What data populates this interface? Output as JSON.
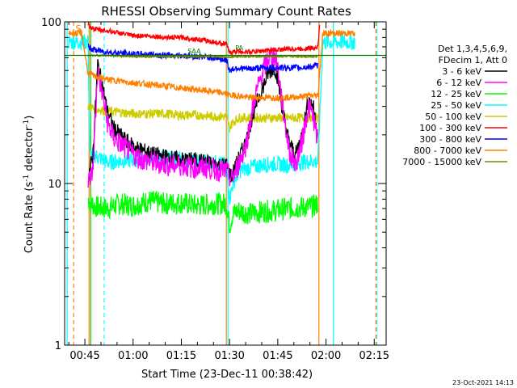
{
  "chart_data": {
    "type": "line",
    "title": "RHESSI Observing Summary Count Rates",
    "xlabel": "Start Time (23-Dec-11 00:38:42)",
    "ylabel": "Count Rate (s⁻¹ detector⁻¹)",
    "ylabel_parts": [
      "Count Rate (s",
      "-1",
      " detector",
      "-1",
      ")"
    ],
    "yscale": "log",
    "ylim": [
      1,
      100
    ],
    "xlim_minutes": [
      38.7,
      138.7
    ],
    "xticks": [
      {
        "m": 45,
        "label": "00:45"
      },
      {
        "m": 60,
        "label": "01:00"
      },
      {
        "m": 75,
        "label": "01:15"
      },
      {
        "m": 90,
        "label": "01:30"
      },
      {
        "m": 105,
        "label": "01:45"
      },
      {
        "m": 120,
        "label": "02:00"
      },
      {
        "m": 135,
        "label": "02:15"
      }
    ],
    "yticks": [
      {
        "v": 1,
        "label": "1"
      },
      {
        "v": 10,
        "label": "10"
      },
      {
        "v": 100,
        "label": "100"
      }
    ],
    "legend_header": [
      "Det 1,3,4,5,6,9,",
      "FDecim 1, Att 0"
    ],
    "legend_position": "right",
    "series": [
      {
        "name": "3 - 6 keV",
        "color": "#000000",
        "points": [
          [
            46,
            11
          ],
          [
            47.5,
            15
          ],
          [
            49,
            55
          ],
          [
            50.5,
            40
          ],
          [
            52,
            28
          ],
          [
            54,
            22
          ],
          [
            57,
            19
          ],
          [
            60,
            17
          ],
          [
            63,
            16
          ],
          [
            67,
            15
          ],
          [
            71,
            14.5
          ],
          [
            75,
            14
          ],
          [
            79,
            14
          ],
          [
            83,
            13.5
          ],
          [
            87,
            13
          ],
          [
            89,
            13
          ],
          [
            90.5,
            11
          ],
          [
            92,
            13
          ],
          [
            95,
            18
          ],
          [
            98,
            30
          ],
          [
            100.5,
            40
          ],
          [
            102,
            48
          ],
          [
            104,
            52
          ],
          [
            105,
            45
          ],
          [
            106.5,
            28
          ],
          [
            108.5,
            18
          ],
          [
            110.5,
            15
          ],
          [
            112.5,
            20
          ],
          [
            114.5,
            33
          ],
          [
            116,
            30
          ],
          [
            117.5,
            20
          ]
        ]
      },
      {
        "name": "6 - 12 keV",
        "color": "#ff00ff",
        "points": [
          [
            46,
            10
          ],
          [
            47.5,
            12
          ],
          [
            49,
            50
          ],
          [
            50.5,
            35
          ],
          [
            52,
            24
          ],
          [
            54,
            19
          ],
          [
            57,
            17
          ],
          [
            60,
            15
          ],
          [
            63,
            14
          ],
          [
            67,
            13.5
          ],
          [
            71,
            13
          ],
          [
            75,
            13
          ],
          [
            79,
            12.5
          ],
          [
            83,
            12.5
          ],
          [
            87,
            12
          ],
          [
            89,
            12
          ],
          [
            90.5,
            10.5
          ],
          [
            92,
            12
          ],
          [
            95,
            17
          ],
          [
            98,
            35
          ],
          [
            100.5,
            50
          ],
          [
            102,
            60
          ],
          [
            104,
            62
          ],
          [
            105,
            52
          ],
          [
            106.5,
            30
          ],
          [
            108.5,
            16
          ],
          [
            110.5,
            13
          ],
          [
            112.5,
            18
          ],
          [
            114.5,
            30
          ],
          [
            116,
            26
          ],
          [
            117.5,
            18
          ]
        ]
      },
      {
        "name": "12 - 25 keV",
        "color": "#00ff00",
        "points": [
          [
            46,
            8
          ],
          [
            48,
            7.2
          ],
          [
            52,
            7
          ],
          [
            56,
            7.5
          ],
          [
            60,
            7.3
          ],
          [
            65,
            7.8
          ],
          [
            70,
            7.5
          ],
          [
            75,
            7.6
          ],
          [
            80,
            7.3
          ],
          [
            85,
            7.5
          ],
          [
            89,
            7.5
          ],
          [
            90,
            5.5
          ],
          [
            91,
            6.5
          ],
          [
            93,
            6.8
          ],
          [
            96,
            6.5
          ],
          [
            100,
            6.7
          ],
          [
            104,
            6.8
          ],
          [
            108,
            7
          ],
          [
            112,
            7.1
          ],
          [
            116,
            7.2
          ],
          [
            117.5,
            7.5
          ]
        ]
      },
      {
        "name": "25 - 50 keV",
        "color": "#00ffff",
        "points": [
          [
            40,
            75
          ],
          [
            46,
            75
          ],
          [
            46.5,
            15
          ],
          [
            48,
            15
          ],
          [
            52,
            13.5
          ],
          [
            56,
            13.8
          ],
          [
            60,
            14
          ],
          [
            65,
            14.5
          ],
          [
            70,
            14.2
          ],
          [
            75,
            14
          ],
          [
            80,
            13.8
          ],
          [
            85,
            13.5
          ],
          [
            89,
            13
          ],
          [
            90,
            8
          ],
          [
            91,
            10
          ],
          [
            93,
            12
          ],
          [
            96,
            12.5
          ],
          [
            100,
            13
          ],
          [
            104,
            13.2
          ],
          [
            108,
            13
          ],
          [
            112,
            13.5
          ],
          [
            116,
            13.8
          ],
          [
            117.5,
            13.5
          ],
          [
            119,
            75
          ],
          [
            129,
            75
          ]
        ]
      },
      {
        "name": "50 - 100 keV",
        "color": "#cccc00",
        "points": [
          [
            46,
            30
          ],
          [
            48,
            29
          ],
          [
            52,
            28
          ],
          [
            56,
            27.5
          ],
          [
            60,
            27
          ],
          [
            65,
            27
          ],
          [
            70,
            27
          ],
          [
            75,
            26.5
          ],
          [
            80,
            26.5
          ],
          [
            85,
            26
          ],
          [
            89,
            26
          ],
          [
            90,
            22
          ],
          [
            91,
            24
          ],
          [
            93,
            25.5
          ],
          [
            96,
            25.5
          ],
          [
            100,
            25.5
          ],
          [
            104,
            25.5
          ],
          [
            108,
            25.5
          ],
          [
            112,
            25.5
          ],
          [
            116,
            25.5
          ],
          [
            117.5,
            25.5
          ]
        ]
      },
      {
        "name": "100 - 300 keV",
        "color": "#ff0000",
        "points": [
          [
            46,
            95
          ],
          [
            48,
            90
          ],
          [
            52,
            88
          ],
          [
            56,
            85
          ],
          [
            60,
            82
          ],
          [
            65,
            82
          ],
          [
            70,
            80
          ],
          [
            75,
            80
          ],
          [
            80,
            78
          ],
          [
            85,
            75
          ],
          [
            89,
            73
          ],
          [
            90,
            64
          ],
          [
            92,
            66
          ],
          [
            96,
            65
          ],
          [
            100,
            66
          ],
          [
            104,
            67
          ],
          [
            108,
            68
          ],
          [
            112,
            68
          ],
          [
            116,
            69
          ],
          [
            117.5,
            70
          ],
          [
            118,
            95
          ]
        ]
      },
      {
        "name": "300 - 800 keV",
        "color": "#0000ff",
        "points": [
          [
            46,
            70
          ],
          [
            48,
            67
          ],
          [
            52,
            65
          ],
          [
            56,
            64
          ],
          [
            60,
            63
          ],
          [
            65,
            63
          ],
          [
            70,
            62
          ],
          [
            75,
            62
          ],
          [
            80,
            61
          ],
          [
            85,
            60
          ],
          [
            89,
            58
          ],
          [
            90,
            50
          ],
          [
            92,
            52
          ],
          [
            96,
            51
          ],
          [
            100,
            52
          ],
          [
            104,
            52
          ],
          [
            108,
            52
          ],
          [
            112,
            52
          ],
          [
            116,
            53
          ],
          [
            117.5,
            54
          ]
        ]
      },
      {
        "name": "800 - 7000 keV",
        "color": "#ff8000",
        "points": [
          [
            40,
            85
          ],
          [
            44,
            85
          ],
          [
            46,
            48
          ],
          [
            48,
            46
          ],
          [
            52,
            44
          ],
          [
            56,
            43
          ],
          [
            60,
            42
          ],
          [
            65,
            41
          ],
          [
            70,
            40
          ],
          [
            75,
            39
          ],
          [
            80,
            38
          ],
          [
            85,
            37
          ],
          [
            89,
            36
          ],
          [
            90,
            35
          ],
          [
            92,
            35
          ],
          [
            96,
            34
          ],
          [
            100,
            34
          ],
          [
            104,
            34
          ],
          [
            108,
            34
          ],
          [
            112,
            34.5
          ],
          [
            116,
            35
          ],
          [
            117.5,
            35
          ],
          [
            119,
            85
          ],
          [
            129,
            85
          ]
        ]
      },
      {
        "name": "7000 - 15000 keV",
        "color": "#808000",
        "points": [
          [
            46,
            62
          ],
          [
            50,
            62
          ],
          [
            55,
            61.5
          ],
          [
            60,
            61
          ],
          [
            65,
            61
          ],
          [
            70,
            61
          ],
          [
            75,
            61
          ],
          [
            80,
            61
          ],
          [
            85,
            61
          ],
          [
            89,
            60.5
          ],
          [
            92,
            61
          ],
          [
            96,
            61
          ],
          [
            100,
            61
          ],
          [
            104,
            61
          ],
          [
            108,
            61
          ],
          [
            112,
            61
          ],
          [
            116,
            61
          ],
          [
            117.5,
            61
          ]
        ]
      }
    ],
    "extra_series": [
      {
        "color": "#008000",
        "points": [
          [
            38.7,
            62
          ],
          [
            138.7,
            62
          ]
        ]
      }
    ],
    "vlines": [
      {
        "m": 39.5,
        "color": "#00ffff",
        "style": "solid"
      },
      {
        "m": 41.5,
        "color": "#ff8000",
        "style": "dashed"
      },
      {
        "m": 46.3,
        "color": "#ff8000",
        "style": "solid"
      },
      {
        "m": 46.8,
        "color": "#00cc00",
        "style": "solid"
      },
      {
        "m": 51.0,
        "color": "#00ffff",
        "style": "dashed"
      },
      {
        "m": 89.0,
        "color": "#ff8000",
        "style": "solid"
      },
      {
        "m": 89.5,
        "color": "#00ffff",
        "style": "solid"
      },
      {
        "m": 117.8,
        "color": "#ff8000",
        "style": "solid"
      },
      {
        "m": 122.3,
        "color": "#00ffff",
        "style": "solid"
      },
      {
        "m": 135.5,
        "color": "#ff8000",
        "style": "dashed"
      },
      {
        "m": 135.8,
        "color": "#00ffff",
        "style": "dashed"
      }
    ],
    "flag_labels": [
      {
        "text": "S",
        "m": 43,
        "v": 87,
        "color": "#ff8000"
      },
      {
        "text": "SAA",
        "m": 79,
        "v": 64,
        "color": "#008000"
      },
      {
        "text": "PA",
        "m": 93,
        "v": 67,
        "color": "#008000"
      }
    ],
    "footer_date": "23-Oct-2021 14:13"
  }
}
